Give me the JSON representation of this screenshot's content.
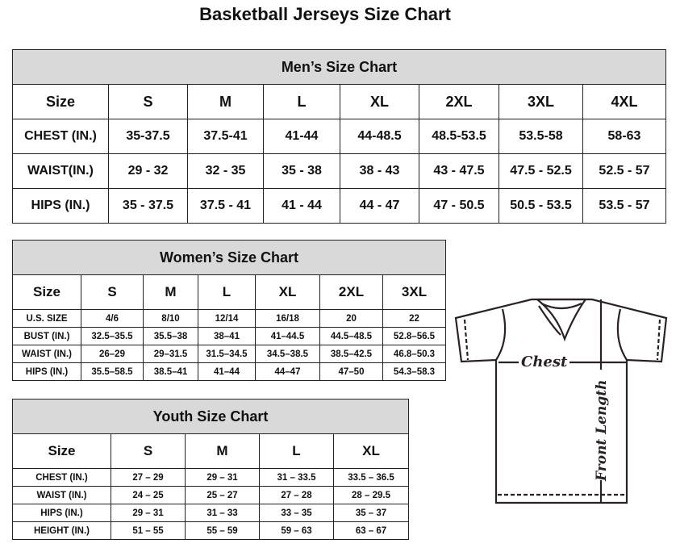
{
  "title": "Basketball Jerseys Size Chart",
  "men": {
    "title": "Men’s Size Chart",
    "headers": [
      "Size",
      "S",
      "M",
      "L",
      "XL",
      "2XL",
      "3XL",
      "4XL"
    ],
    "rows": [
      [
        "CHEST (IN.)",
        "35-37.5",
        "37.5-41",
        "41-44",
        "44-48.5",
        "48.5-53.5",
        "53.5-58",
        "58-63"
      ],
      [
        "WAIST(IN.)",
        "29 - 32",
        "32 - 35",
        "35 - 38",
        "38 - 43",
        "43 - 47.5",
        "47.5 - 52.5",
        "52.5 - 57"
      ],
      [
        "HIPS (IN.)",
        "35 - 37.5",
        "37.5 - 41",
        "41 - 44",
        "44 - 47",
        "47 - 50.5",
        "50.5 - 53.5",
        "53.5 - 57"
      ]
    ]
  },
  "women": {
    "title": "Women’s Size Chart",
    "headers": [
      "Size",
      "S",
      "M",
      "L",
      "XL",
      "2XL",
      "3XL"
    ],
    "rows": [
      [
        "U.S. SIZE",
        "4/6",
        "8/10",
        "12/14",
        "16/18",
        "20",
        "22"
      ],
      [
        "BUST (IN.)",
        "32.5–35.5",
        "35.5–38",
        "38–41",
        "41–44.5",
        "44.5–48.5",
        "52.8–56.5"
      ],
      [
        "WAIST (IN.)",
        "26–29",
        "29–31.5",
        "31.5–34.5",
        "34.5–38.5",
        "38.5–42.5",
        "46.8–50.3"
      ],
      [
        "HIPS (IN.)",
        "35.5–58.5",
        "38.5–41",
        "41–44",
        "44–47",
        "47–50",
        "54.3–58.3"
      ]
    ]
  },
  "youth": {
    "title": "Youth Size Chart",
    "headers": [
      "Size",
      "S",
      "M",
      "L",
      "XL"
    ],
    "rows": [
      [
        "CHEST (IN.)",
        "27 – 29",
        "29 – 31",
        "31 – 33.5",
        "33.5 – 36.5"
      ],
      [
        "WAIST (IN.)",
        "24 – 25",
        "25 – 27",
        "27 – 28",
        "28 – 29.5"
      ],
      [
        "HIPS (IN.)",
        "29 – 31",
        "31 – 33",
        "33 – 35",
        "35 – 37"
      ],
      [
        "HEIGHT (IN.)",
        "51 – 55",
        "55 – 59",
        "59 – 63",
        "63 – 67"
      ]
    ]
  },
  "diagram": {
    "chest_label": "Chest",
    "length_label": "Front Length"
  },
  "colors": {
    "header_bg": "#d9d9d9",
    "line": "#222222"
  }
}
